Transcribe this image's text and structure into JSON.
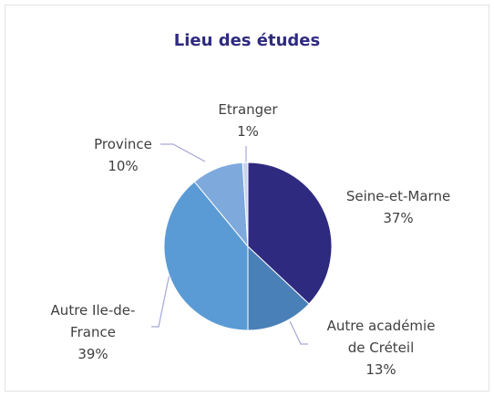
{
  "chart_data": {
    "type": "pie",
    "title": "Lieu des études",
    "categories": [
      "Seine-et-Marne",
      "Autre académie de Créteil",
      "Autre Ile-de-France",
      "Province",
      "Etranger"
    ],
    "values": [
      37,
      13,
      39,
      10,
      1
    ],
    "value_labels": [
      "37%",
      "13%",
      "39%",
      "10%",
      "1%"
    ],
    "colors": [
      "#2e2a7f",
      "#4a80b8",
      "#5b9bd5",
      "#7ea9dd",
      "#c8d4ea"
    ]
  }
}
